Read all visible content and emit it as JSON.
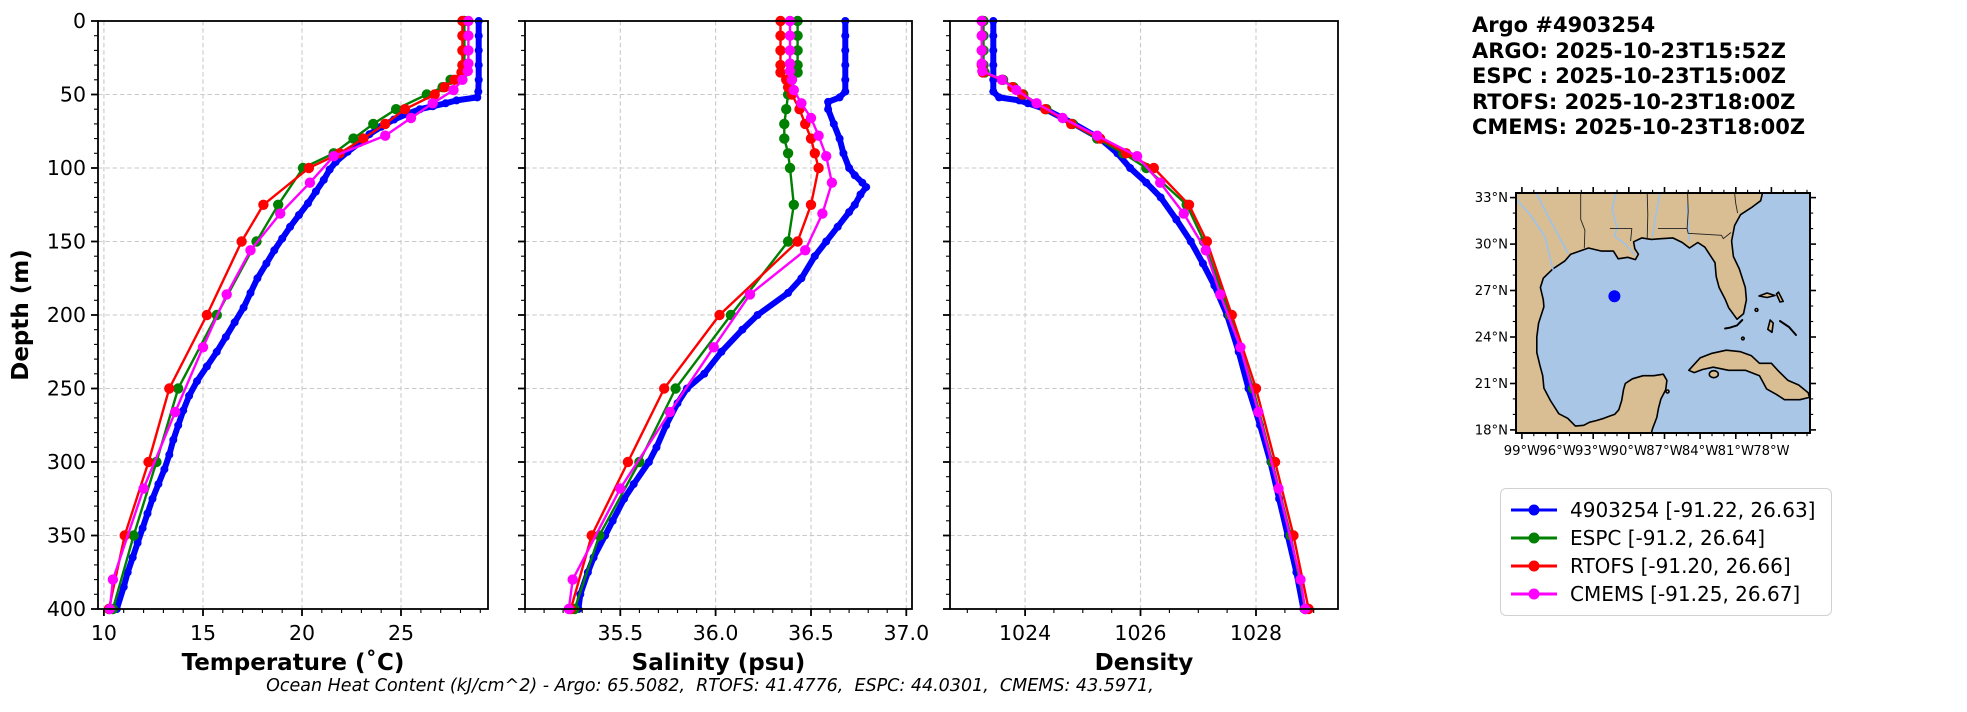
{
  "header": {
    "title_lines": [
      "Argo #4903254",
      "ARGO: 2025-10-23T15:52Z",
      "ESPC : 2025-10-23T15:00Z",
      "RTOFS: 2025-10-23T18:00Z",
      "CMEMS: 2025-10-23T18:00Z"
    ]
  },
  "footer": {
    "text": "Ocean Heat Content (kJ/cm^2) - Argo: 65.5082,  RTOFS: 41.4776,  ESPC: 44.0301,  CMEMS: 43.5971,"
  },
  "legend": {
    "items": [
      {
        "label": "4903254 [-91.22, 26.63]",
        "color": "#0000ff"
      },
      {
        "label": "ESPC [-91.2, 26.64]",
        "color": "#008000"
      },
      {
        "label": "RTOFS [-91.20, 26.66]",
        "color": "#ff0000"
      },
      {
        "label": "CMEMS [-91.25, 26.67]",
        "color": "#ff00ff"
      }
    ]
  },
  "map": {
    "land_color": "#d9be93",
    "ocean_color": "#a9c6e6",
    "extent": {
      "lon_min": -99.5,
      "lon_max": -74.75,
      "lat_min": 17.8,
      "lat_max": 33.3
    },
    "lat_tick_vals": [
      33,
      30,
      27,
      24,
      21,
      18
    ],
    "lat_tick_labels": [
      "33°N",
      "30°N",
      "27°N",
      "24°N",
      "21°N",
      "18°N"
    ],
    "lon_tick_vals": [
      -99,
      -96,
      -93,
      -90,
      -87,
      -84,
      -81,
      -78
    ],
    "lon_tick_labels": [
      "99°W",
      "96°W",
      "93°W",
      "90°W",
      "87°W",
      "84°W",
      "81°W",
      "78°W"
    ],
    "float_marker": {
      "lon": -91.22,
      "lat": 26.63,
      "color": "#0000ff"
    }
  },
  "chart_data": [
    {
      "type": "line",
      "xlabel": "Temperature (˚C)",
      "ylabel": "Depth (m)",
      "xlim": [
        9.7,
        29.39
      ],
      "ylim": [
        0,
        400
      ],
      "grid": true,
      "xticks": {
        "vals": [
          10,
          15,
          20,
          25
        ],
        "labels": [
          "10",
          "15",
          "20",
          "25"
        ],
        "minor_step": 1
      },
      "yticks": {
        "vals": [
          0,
          50,
          100,
          150,
          200,
          250,
          300,
          350,
          400
        ],
        "labels": [
          "0",
          "50",
          "100",
          "150",
          "200",
          "250",
          "300",
          "350",
          "400"
        ],
        "minor_step": 10
      },
      "series": [
        {
          "name": "4903254",
          "color": "#0000ff",
          "line_width": 6,
          "marker_size": 4,
          "depth": [
            0,
            10,
            20,
            30,
            40,
            48,
            52,
            54,
            56,
            58,
            60,
            63,
            67,
            72,
            77,
            83,
            89,
            96,
            101,
            108,
            116,
            124,
            132,
            140,
            148,
            156,
            165,
            175,
            185,
            195,
            205,
            215,
            225,
            235,
            245,
            255,
            265,
            275,
            285,
            295,
            305,
            315,
            325,
            335,
            345,
            355,
            365,
            375,
            385,
            400
          ],
          "values": [
            28.92,
            28.92,
            28.92,
            28.92,
            28.92,
            28.9,
            28.85,
            27.8,
            27.25,
            26.6,
            25.95,
            25.35,
            24.65,
            24.0,
            23.4,
            22.9,
            22.3,
            21.7,
            21.4,
            21.1,
            20.7,
            20.3,
            19.85,
            19.4,
            19.0,
            18.6,
            18.2,
            17.75,
            17.4,
            17.05,
            16.6,
            16.15,
            15.7,
            15.2,
            14.7,
            14.3,
            14.0,
            13.75,
            13.5,
            13.3,
            13.05,
            12.75,
            12.45,
            12.2,
            11.95,
            11.7,
            11.45,
            11.2,
            11.0,
            10.65
          ]
        },
        {
          "name": "ESPC",
          "color": "#008000",
          "line_width": 2.4,
          "marker_size": 5.2,
          "depth": [
            0,
            10,
            20,
            30,
            35,
            40,
            45,
            50,
            60,
            70,
            80,
            90,
            100,
            125,
            150,
            200,
            250,
            300,
            350,
            400
          ],
          "values": [
            28.2,
            28.2,
            28.2,
            28.2,
            28.18,
            27.5,
            27.1,
            26.3,
            24.75,
            23.6,
            22.6,
            21.6,
            20.05,
            18.8,
            17.7,
            15.7,
            13.75,
            12.65,
            11.5,
            10.45
          ]
        },
        {
          "name": "RTOFS",
          "color": "#ff0000",
          "line_width": 2.4,
          "marker_size": 5.2,
          "depth": [
            0,
            10,
            20,
            30,
            35,
            40,
            45,
            50,
            60,
            70,
            80,
            90,
            100,
            125,
            150,
            200,
            250,
            300,
            350,
            400
          ],
          "values": [
            28.1,
            28.1,
            28.1,
            28.1,
            28.05,
            27.7,
            27.2,
            26.7,
            25.2,
            24.2,
            23.1,
            21.9,
            20.35,
            18.05,
            16.95,
            15.2,
            13.3,
            12.25,
            11.05,
            10.25
          ]
        },
        {
          "name": "CMEMS",
          "color": "#ff00ff",
          "line_width": 2.4,
          "marker_size": 5.2,
          "depth": [
            0,
            10,
            20,
            29,
            34,
            40,
            47,
            56,
            66,
            78,
            92,
            110,
            131,
            156,
            186,
            222,
            266,
            318,
            380,
            400
          ],
          "values": [
            28.4,
            28.4,
            28.4,
            28.4,
            28.37,
            28.1,
            27.65,
            26.6,
            25.5,
            24.2,
            21.6,
            20.4,
            18.9,
            17.4,
            16.2,
            15.0,
            13.6,
            12.0,
            10.45,
            10.3
          ]
        }
      ]
    },
    {
      "type": "line",
      "xlabel": "Salinity (psu)",
      "ylabel": "Depth (m)",
      "xlim": [
        35.0,
        37.03
      ],
      "ylim": [
        0,
        400
      ],
      "grid": true,
      "xticks": {
        "vals": [
          35.5,
          36.0,
          36.5,
          37.0
        ],
        "labels": [
          "35.5",
          "36.0",
          "36.5",
          "37.0"
        ],
        "minor_step": 0.1
      },
      "yticks": {
        "vals": [
          0,
          50,
          100,
          150,
          200,
          250,
          300,
          350,
          400
        ],
        "labels": [
          "0",
          "50",
          "100",
          "150",
          "200",
          "250",
          "300",
          "350",
          "400"
        ],
        "minor_step": 10
      },
      "series": [
        {
          "name": "4903254",
          "color": "#0000ff",
          "line_width": 6,
          "marker_size": 4,
          "depth": [
            0,
            10,
            20,
            30,
            40,
            48,
            52,
            55,
            60,
            70,
            80,
            90,
            100,
            105,
            110,
            113,
            118,
            125,
            130,
            140,
            150,
            160,
            175,
            185,
            200,
            210,
            225,
            240,
            250,
            260,
            275,
            290,
            300,
            315,
            325,
            340,
            350,
            365,
            375,
            390,
            400
          ],
          "values": [
            36.68,
            36.68,
            36.68,
            36.68,
            36.68,
            36.68,
            36.65,
            36.59,
            36.59,
            36.62,
            36.65,
            36.67,
            36.7,
            36.73,
            36.77,
            36.79,
            36.76,
            36.73,
            36.7,
            36.64,
            36.58,
            36.52,
            36.45,
            36.38,
            36.22,
            36.14,
            36.03,
            35.94,
            35.85,
            35.8,
            35.74,
            35.69,
            35.65,
            35.57,
            35.52,
            35.46,
            35.42,
            35.36,
            35.33,
            35.29,
            35.28
          ]
        },
        {
          "name": "ESPC",
          "color": "#008000",
          "line_width": 2.4,
          "marker_size": 5.2,
          "depth": [
            0,
            10,
            20,
            30,
            35,
            40,
            45,
            50,
            60,
            70,
            80,
            90,
            100,
            125,
            150,
            200,
            250,
            300,
            350,
            400
          ],
          "values": [
            36.43,
            36.43,
            36.43,
            36.43,
            36.43,
            36.4,
            36.39,
            36.38,
            36.37,
            36.36,
            36.36,
            36.38,
            36.39,
            36.41,
            36.38,
            36.08,
            35.79,
            35.6,
            35.39,
            35.26
          ]
        },
        {
          "name": "RTOFS",
          "color": "#ff0000",
          "line_width": 2.4,
          "marker_size": 5.2,
          "depth": [
            0,
            10,
            20,
            30,
            35,
            40,
            45,
            50,
            60,
            70,
            80,
            90,
            100,
            125,
            150,
            200,
            250,
            300,
            350,
            400
          ],
          "values": [
            36.34,
            36.34,
            36.34,
            36.34,
            36.34,
            36.37,
            36.38,
            36.4,
            36.44,
            36.47,
            36.5,
            36.52,
            36.54,
            36.5,
            36.43,
            36.02,
            35.73,
            35.54,
            35.35,
            35.24
          ]
        },
        {
          "name": "CMEMS",
          "color": "#ff00ff",
          "line_width": 2.4,
          "marker_size": 5.2,
          "depth": [
            0,
            10,
            20,
            29,
            34,
            40,
            47,
            56,
            66,
            78,
            92,
            110,
            131,
            156,
            186,
            222,
            266,
            318,
            380,
            400
          ],
          "values": [
            36.39,
            36.39,
            36.39,
            36.39,
            36.39,
            36.4,
            36.41,
            36.45,
            36.5,
            36.54,
            36.58,
            36.61,
            36.56,
            36.47,
            36.18,
            35.99,
            35.76,
            35.5,
            35.25,
            35.23
          ]
        }
      ]
    },
    {
      "type": "line",
      "xlabel": "Density",
      "ylabel": "Depth (m)",
      "xlim": [
        1022.7,
        1029.42
      ],
      "ylim": [
        0,
        400
      ],
      "grid": true,
      "xticks": {
        "vals": [
          1024,
          1026,
          1028
        ],
        "labels": [
          "1024",
          "1026",
          "1028"
        ],
        "minor_step": 0.5
      },
      "yticks": {
        "vals": [
          0,
          50,
          100,
          150,
          200,
          250,
          300,
          350,
          400
        ],
        "labels": [
          "0",
          "50",
          "100",
          "150",
          "200",
          "250",
          "300",
          "350",
          "400"
        ],
        "minor_step": 10
      },
      "series": [
        {
          "name": "4903254",
          "color": "#0000ff",
          "line_width": 6,
          "marker_size": 4,
          "depth": [
            0,
            10,
            20,
            30,
            40,
            48,
            52,
            54,
            56,
            60,
            70,
            80,
            90,
            100,
            110,
            120,
            135,
            150,
            165,
            180,
            200,
            225,
            250,
            275,
            300,
            325,
            350,
            375,
            400
          ],
          "values": [
            1023.45,
            1023.45,
            1023.45,
            1023.45,
            1023.45,
            1023.45,
            1023.55,
            1023.9,
            1024.05,
            1024.35,
            1024.85,
            1025.3,
            1025.6,
            1025.82,
            1026.1,
            1026.35,
            1026.62,
            1026.87,
            1027.08,
            1027.28,
            1027.5,
            1027.7,
            1027.87,
            1028.07,
            1028.25,
            1028.4,
            1028.55,
            1028.7,
            1028.82
          ]
        },
        {
          "name": "ESPC",
          "color": "#008000",
          "line_width": 2.4,
          "marker_size": 5.2,
          "depth": [
            0,
            10,
            20,
            30,
            35,
            40,
            45,
            50,
            60,
            70,
            80,
            90,
            100,
            125,
            150,
            200,
            250,
            300,
            350,
            400
          ],
          "values": [
            1023.28,
            1023.28,
            1023.28,
            1023.28,
            1023.3,
            1023.62,
            1023.8,
            1023.97,
            1024.37,
            1024.82,
            1025.25,
            1025.7,
            1026.1,
            1026.8,
            1027.1,
            1027.55,
            1027.95,
            1028.28,
            1028.6,
            1028.85
          ]
        },
        {
          "name": "RTOFS",
          "color": "#ff0000",
          "line_width": 2.4,
          "marker_size": 5.2,
          "depth": [
            0,
            10,
            20,
            30,
            35,
            40,
            45,
            50,
            60,
            70,
            80,
            90,
            100,
            125,
            150,
            200,
            250,
            300,
            350,
            400
          ],
          "values": [
            1023.25,
            1023.25,
            1023.25,
            1023.25,
            1023.27,
            1023.6,
            1023.78,
            1023.95,
            1024.35,
            1024.8,
            1025.3,
            1025.75,
            1026.23,
            1026.84,
            1027.15,
            1027.58,
            1028.0,
            1028.33,
            1028.65,
            1028.91
          ]
        },
        {
          "name": "CMEMS",
          "color": "#ff00ff",
          "line_width": 2.4,
          "marker_size": 5.2,
          "depth": [
            0,
            10,
            20,
            29,
            34,
            40,
            47,
            56,
            66,
            78,
            92,
            110,
            131,
            156,
            186,
            222,
            266,
            318,
            380,
            400
          ],
          "values": [
            1023.25,
            1023.25,
            1023.25,
            1023.25,
            1023.26,
            1023.6,
            1023.85,
            1024.2,
            1024.65,
            1025.25,
            1025.94,
            1026.34,
            1026.75,
            1027.13,
            1027.38,
            1027.73,
            1028.04,
            1028.39,
            1028.77,
            1028.85
          ]
        }
      ]
    }
  ]
}
